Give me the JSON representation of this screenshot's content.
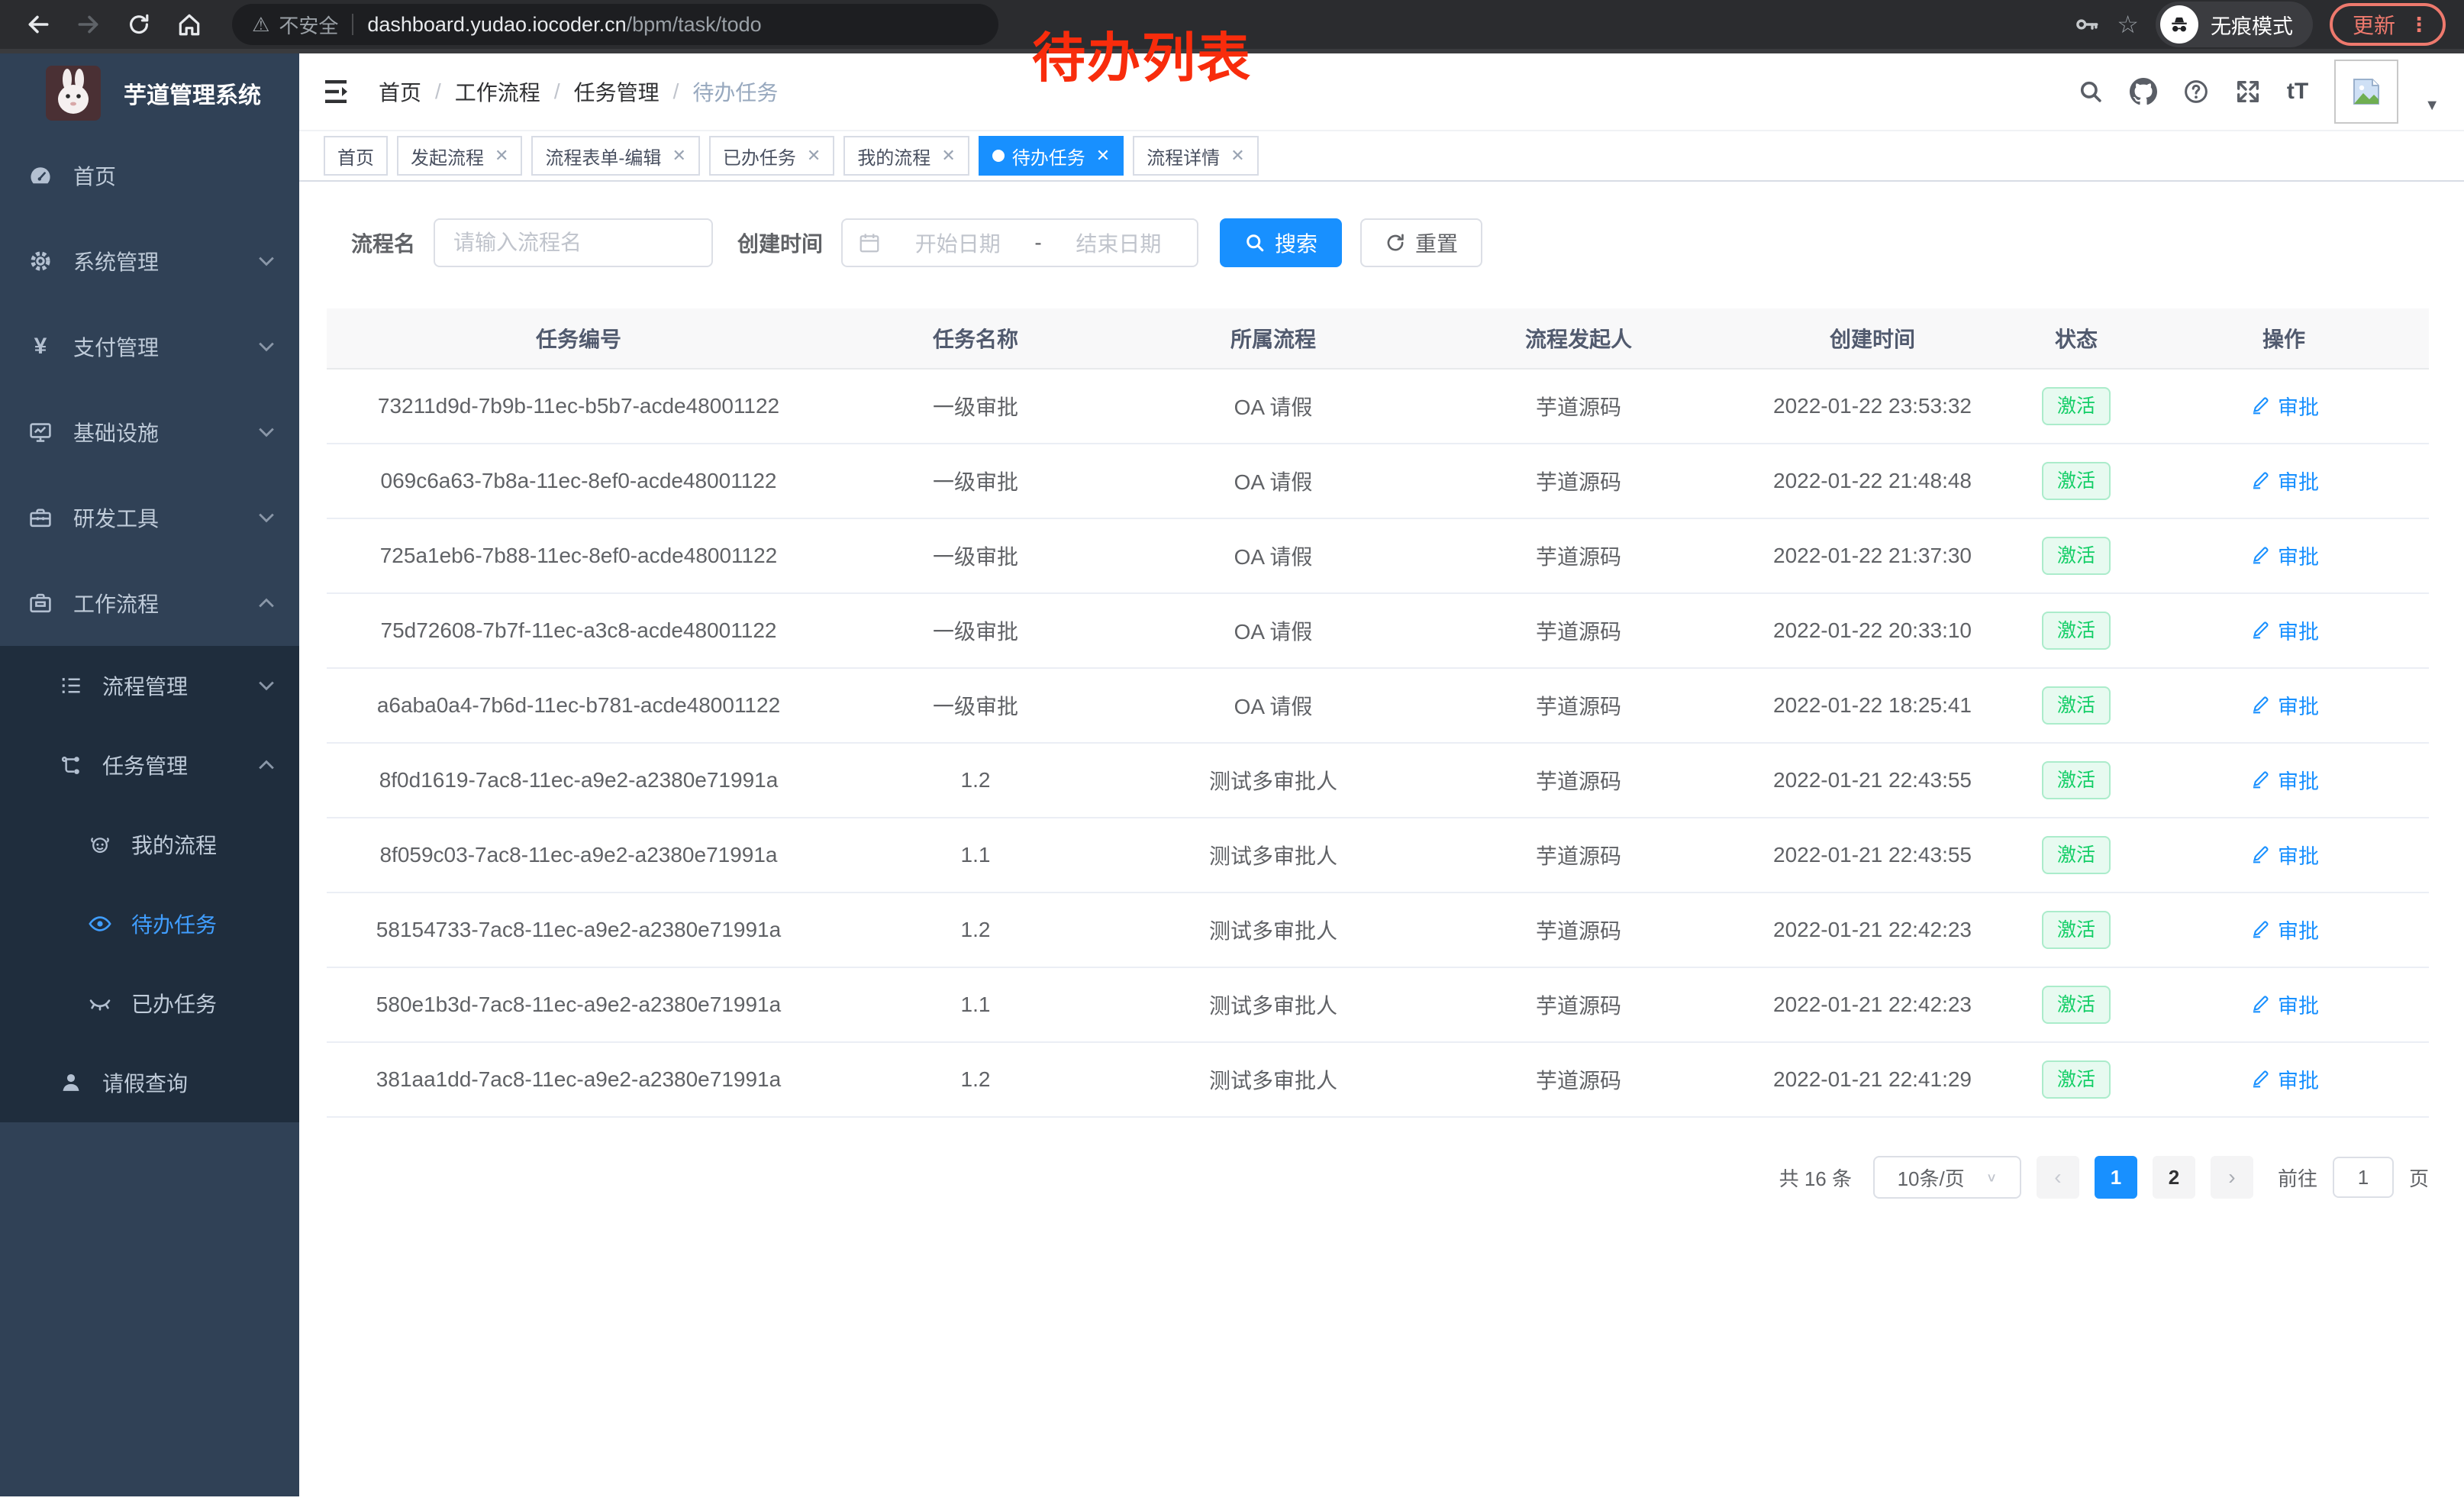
{
  "annotation": {
    "text": "待办列表",
    "color": "#f82c0c"
  },
  "browser": {
    "security_label": "不安全",
    "url_host": "dashboard.yudao.iocoder.cn",
    "url_path": "/bpm/task/todo",
    "incognito_label": "无痕模式",
    "update_label": "更新",
    "kebab_glyph": "⋮",
    "star_glyph": "☆",
    "warning_glyph": "⚠"
  },
  "sidebar": {
    "title": "芋道管理系统",
    "items": [
      {
        "label": "首页"
      },
      {
        "label": "系统管理"
      },
      {
        "label": "支付管理"
      },
      {
        "label": "基础设施"
      },
      {
        "label": "研发工具"
      },
      {
        "label": "工作流程"
      }
    ],
    "submenu": [
      {
        "label": "流程管理"
      },
      {
        "label": "任务管理",
        "children": [
          {
            "label": "我的流程"
          },
          {
            "label": "待办任务",
            "active": true
          },
          {
            "label": "已办任务"
          }
        ]
      },
      {
        "label": "请假查询"
      }
    ],
    "yen_glyph": "¥"
  },
  "breadcrumb": {
    "items": [
      "首页",
      "工作流程",
      "任务管理",
      "待办任务"
    ],
    "separator": "/"
  },
  "header_icons": {
    "font_size_glyph": "tT",
    "caret_glyph": "▼"
  },
  "tabs": [
    {
      "label": "首页",
      "closable": false
    },
    {
      "label": "发起流程",
      "closable": true
    },
    {
      "label": "流程表单-编辑",
      "closable": true
    },
    {
      "label": "已办任务",
      "closable": true
    },
    {
      "label": "我的流程",
      "closable": true
    },
    {
      "label": "待办任务",
      "closable": true,
      "active": true
    },
    {
      "label": "流程详情",
      "closable": true
    }
  ],
  "filters": {
    "name_label": "流程名",
    "name_placeholder": "请输入流程名",
    "time_label": "创建时间",
    "start_placeholder": "开始日期",
    "range_separator": "-",
    "end_placeholder": "结束日期",
    "search_label": "搜索",
    "reset_label": "重置"
  },
  "table": {
    "columns": [
      "任务编号",
      "任务名称",
      "所属流程",
      "流程发起人",
      "创建时间",
      "状态",
      "操作"
    ],
    "rows": [
      {
        "id": "73211d9d-7b9b-11ec-b5b7-acde48001122",
        "name": "一级审批",
        "process": "OA 请假",
        "starter": "芋道源码",
        "created": "2022-01-22 23:53:32",
        "status": "激活",
        "action": "审批"
      },
      {
        "id": "069c6a63-7b8a-11ec-8ef0-acde48001122",
        "name": "一级审批",
        "process": "OA 请假",
        "starter": "芋道源码",
        "created": "2022-01-22 21:48:48",
        "status": "激活",
        "action": "审批"
      },
      {
        "id": "725a1eb6-7b88-11ec-8ef0-acde48001122",
        "name": "一级审批",
        "process": "OA 请假",
        "starter": "芋道源码",
        "created": "2022-01-22 21:37:30",
        "status": "激活",
        "action": "审批"
      },
      {
        "id": "75d72608-7b7f-11ec-a3c8-acde48001122",
        "name": "一级审批",
        "process": "OA 请假",
        "starter": "芋道源码",
        "created": "2022-01-22 20:33:10",
        "status": "激活",
        "action": "审批"
      },
      {
        "id": "a6aba0a4-7b6d-11ec-b781-acde48001122",
        "name": "一级审批",
        "process": "OA 请假",
        "starter": "芋道源码",
        "created": "2022-01-22 18:25:41",
        "status": "激活",
        "action": "审批"
      },
      {
        "id": "8f0d1619-7ac8-11ec-a9e2-a2380e71991a",
        "name": "1.2",
        "process": "测试多审批人",
        "starter": "芋道源码",
        "created": "2022-01-21 22:43:55",
        "status": "激活",
        "action": "审批"
      },
      {
        "id": "8f059c03-7ac8-11ec-a9e2-a2380e71991a",
        "name": "1.1",
        "process": "测试多审批人",
        "starter": "芋道源码",
        "created": "2022-01-21 22:43:55",
        "status": "激活",
        "action": "审批"
      },
      {
        "id": "58154733-7ac8-11ec-a9e2-a2380e71991a",
        "name": "1.2",
        "process": "测试多审批人",
        "starter": "芋道源码",
        "created": "2022-01-21 22:42:23",
        "status": "激活",
        "action": "审批"
      },
      {
        "id": "580e1b3d-7ac8-11ec-a9e2-a2380e71991a",
        "name": "1.1",
        "process": "测试多审批人",
        "starter": "芋道源码",
        "created": "2022-01-21 22:42:23",
        "status": "激活",
        "action": "审批"
      },
      {
        "id": "381aa1dd-7ac8-11ec-a9e2-a2380e71991a",
        "name": "1.2",
        "process": "测试多审批人",
        "starter": "芋道源码",
        "created": "2022-01-21 22:41:29",
        "status": "激活",
        "action": "审批"
      }
    ]
  },
  "pagination": {
    "total_label": "共 16 条",
    "page_size": "10条/页",
    "prev_glyph": "‹",
    "next_glyph": "›",
    "pages": [
      "1",
      "2"
    ],
    "active_page": "1",
    "goto_label": "前往",
    "goto_value": "1",
    "goto_suffix": "页",
    "caret_glyph": "∨"
  },
  "colors": {
    "accent_blue": "#1890ff",
    "active_link_blue": "#409eff",
    "sidebar_bg": "#304156",
    "submenu_bg": "#1f2d3d",
    "sidebar_text": "#bfcbd9",
    "success_text": "#13ce66",
    "success_bg": "#e7faf0",
    "annotation_red": "#f82c0c",
    "chrome_bg": "#2b2c2f",
    "update_salmon": "#ee796d"
  },
  "icons": {
    "sidebar": [
      "dashboard-icon",
      "gear-icon",
      "yen-icon",
      "monitor-icon",
      "toolbox-icon",
      "briefcase-icon",
      "list-icon",
      "tree-icon",
      "face-icon",
      "eye-icon",
      "eye-closed-icon",
      "person-icon"
    ],
    "navbar": [
      "hamburger-icon",
      "search-icon",
      "github-icon",
      "help-icon",
      "fullscreen-icon",
      "font-size-icon",
      "broken-image-icon"
    ],
    "chrome": [
      "back-icon",
      "forward-icon",
      "reload-icon",
      "home-icon",
      "warning-icon",
      "key-icon",
      "star-icon",
      "incognito-icon",
      "kebab-icon"
    ],
    "actions": [
      "calendar-icon",
      "search-icon",
      "refresh-icon",
      "pen-icon"
    ]
  }
}
